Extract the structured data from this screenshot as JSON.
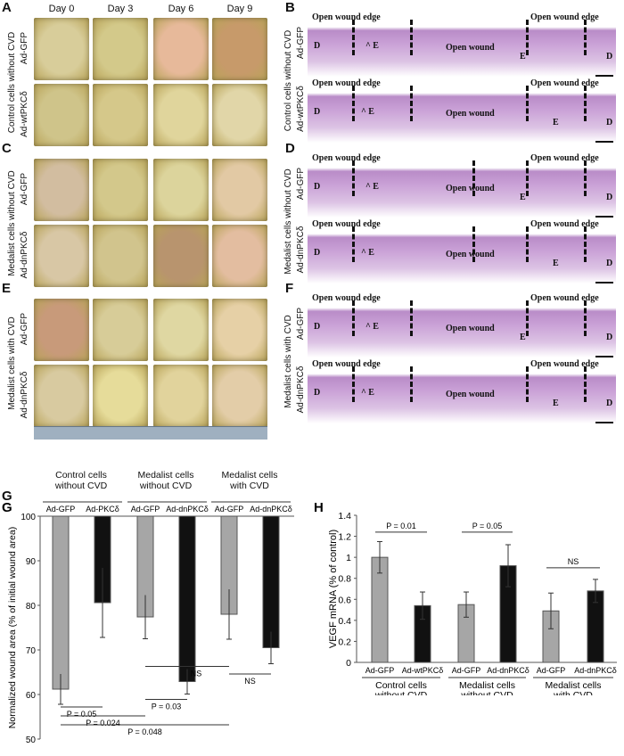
{
  "days": [
    "Day 0",
    "Day 3",
    "Day 6",
    "Day 9"
  ],
  "panels_left": [
    {
      "letter": "A",
      "group": "Control cells without CVD",
      "rows": [
        "Ad-GFP",
        "Ad-wtPKCδ"
      ],
      "colors": [
        [
          "#d8cd9a",
          "#d3c98a",
          "#e7b99a",
          "#c79a6a"
        ],
        [
          "#cfc48a",
          "#d5c88a",
          "#e0d59c",
          "#e1d6a8"
        ]
      ]
    },
    {
      "letter": "C",
      "group": "Medalist cells without CVD",
      "rows": [
        "Ad-GFP",
        "Ad-dnPKCδ"
      ],
      "colors": [
        [
          "#d2bda0",
          "#d3c88b",
          "#dcd49c",
          "#e2c9a4"
        ],
        [
          "#d8c7a5",
          "#d1c48d",
          "#b8946e",
          "#e3bda0"
        ]
      ]
    },
    {
      "letter": "E",
      "group": "Medalist cells with CVD",
      "rows": [
        "Ad-GFP",
        "Ad-dnPKCδ"
      ],
      "colors": [
        [
          "#c89a7a",
          "#d7cc98",
          "#dfd7a2",
          "#e6d0a6"
        ],
        [
          "#d8caa0",
          "#e6dc9a",
          "#e1d39c",
          "#e3cda8"
        ]
      ]
    }
  ],
  "panels_right": [
    {
      "letter": "B",
      "group": "Control cells without CVD",
      "rows": [
        "Ad-GFP",
        "Ad-wtPKCδ"
      ]
    },
    {
      "letter": "D",
      "group": "Medalist cells without CVD",
      "rows": [
        "Ad-GFP",
        "Ad-dnPKCδ"
      ]
    },
    {
      "letter": "F",
      "group": "Medalist cells with CVD",
      "rows": [
        "Ad-GFP",
        "Ad-dnPKCδ"
      ]
    }
  ],
  "histology_labels": {
    "edge": "Open wound edge",
    "wound": "Open wound",
    "D": "D",
    "E": "E"
  },
  "chart_data": [
    {
      "letter": "G",
      "type": "bar",
      "ylabel": "Normalized wound area (% of initial wound area)",
      "ylim": [
        50,
        100
      ],
      "yticks": [
        50,
        60,
        70,
        80,
        90,
        100
      ],
      "groups": [
        "Control cells without CVD",
        "Medalist cells without CVD",
        "Medalist cells with CVD"
      ],
      "categories": [
        "Ad-GFP",
        "Ad-PKCδ",
        "Ad-GFP",
        "Ad-dnPKCδ",
        "Ad-GFP",
        "Ad-dnPKCδ"
      ],
      "values": [
        61.2,
        80.6,
        77.4,
        62.9,
        78.0,
        70.5
      ],
      "errors": [
        3.4,
        7.8,
        4.9,
        2.8,
        5.6,
        3.6
      ],
      "colors": [
        "#a6a6a6",
        "#111111",
        "#a6a6a6",
        "#111111",
        "#a6a6a6",
        "#111111"
      ],
      "annotations": [
        {
          "from": 0,
          "to": 1,
          "text": "P = 0.05"
        },
        {
          "from": 0,
          "to": 2,
          "text": "P = 0.024"
        },
        {
          "from": 0,
          "to": 4,
          "text": "P = 0.048"
        },
        {
          "from": 2,
          "to": 3,
          "text": "P = 0.03"
        },
        {
          "from": 2,
          "to": 4,
          "text": "NS"
        },
        {
          "from": 4,
          "to": 5,
          "text": "NS"
        }
      ]
    },
    {
      "letter": "H",
      "type": "bar",
      "ylabel": "VEGF mRNA (% of control)",
      "ylim": [
        0,
        1.4
      ],
      "yticks": [
        "0",
        "0.2",
        "0.4",
        "0.6",
        "0.8",
        "1",
        "1.2",
        "1.4"
      ],
      "groups": [
        "Control cells without CVD",
        "Medalist cells without CVD",
        "Medalist cells with CVD"
      ],
      "categories": [
        "Ad-GFP",
        "Ad-wtPKCδ",
        "Ad-GFP",
        "Ad-dnPKCδ",
        "Ad-GFP",
        "Ad-dnPKCδ"
      ],
      "values": [
        1.0,
        0.54,
        0.55,
        0.92,
        0.49,
        0.68
      ],
      "errors": [
        0.15,
        0.13,
        0.12,
        0.2,
        0.17,
        0.11
      ],
      "colors": [
        "#a6a6a6",
        "#111111",
        "#a6a6a6",
        "#111111",
        "#a6a6a6",
        "#111111"
      ],
      "annotations": [
        {
          "from": 0,
          "to": 1,
          "text": "P = 0.01"
        },
        {
          "from": 2,
          "to": 3,
          "text": "P = 0.05"
        },
        {
          "from": 4,
          "to": 5,
          "text": "NS"
        }
      ]
    }
  ]
}
